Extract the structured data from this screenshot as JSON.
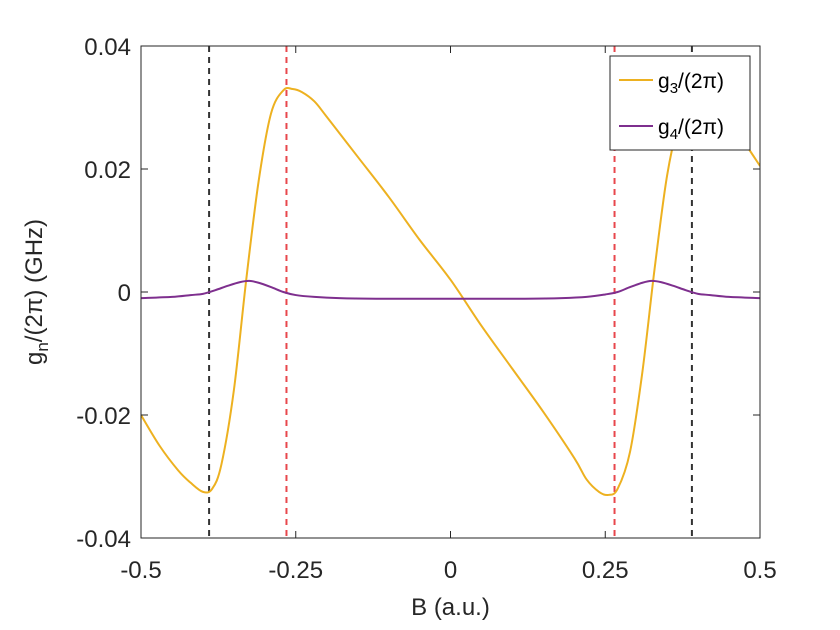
{
  "chart_data": {
    "type": "line",
    "title": "",
    "xlabel": "B (a.u.)",
    "ylabel": {
      "base": "g",
      "sub": "n",
      "rest": "/(2π) (GHz)"
    },
    "xlim": [
      -0.5,
      0.5
    ],
    "ylim": [
      -0.04,
      0.04
    ],
    "xticks": [
      -0.5,
      -0.25,
      0,
      0.25,
      0.5
    ],
    "xtick_labels": [
      "-0.5",
      "-0.25",
      "0",
      "0.25",
      "0.5"
    ],
    "yticks": [
      -0.04,
      -0.02,
      0,
      0.02,
      0.04
    ],
    "ytick_labels": [
      "-0.04",
      "-0.02",
      "0",
      "0.02",
      "0.04"
    ],
    "grid": false,
    "legend_position": "top-right",
    "vlines": [
      {
        "x": -0.39,
        "color": "#333333"
      },
      {
        "x": -0.265,
        "color": "#e8474c"
      },
      {
        "x": 0.265,
        "color": "#e8474c"
      },
      {
        "x": 0.39,
        "color": "#333333"
      }
    ],
    "series": [
      {
        "name": {
          "base": "g",
          "sub": "3",
          "rest": "/(2π)"
        },
        "color": "#EDB120",
        "x": [
          -0.5,
          -0.47,
          -0.44,
          -0.42,
          -0.4,
          -0.385,
          -0.37,
          -0.35,
          -0.33,
          -0.31,
          -0.29,
          -0.27,
          -0.255,
          -0.24,
          -0.22,
          -0.2,
          -0.15,
          -0.1,
          -0.05,
          0.0,
          0.05,
          0.1,
          0.15,
          0.2,
          0.22,
          0.24,
          0.255,
          0.27,
          0.29,
          0.31,
          0.33,
          0.35,
          0.37,
          0.385,
          0.4,
          0.42,
          0.44,
          0.47,
          0.5
        ],
        "y": [
          -0.02,
          -0.025,
          -0.029,
          -0.031,
          -0.0325,
          -0.032,
          -0.028,
          -0.016,
          0.002,
          0.018,
          0.029,
          0.0328,
          0.033,
          0.0325,
          0.031,
          0.0285,
          0.022,
          0.0155,
          0.0085,
          0.002,
          -0.0055,
          -0.0125,
          -0.0195,
          -0.027,
          -0.0305,
          -0.0325,
          -0.033,
          -0.032,
          -0.026,
          -0.013,
          0.004,
          0.019,
          0.028,
          0.031,
          0.0328,
          0.031,
          0.029,
          0.025,
          0.0205
        ]
      },
      {
        "name": {
          "base": "g",
          "sub": "4",
          "rest": "/(2π)"
        },
        "color": "#7E2F8E",
        "x": [
          -0.5,
          -0.45,
          -0.42,
          -0.4,
          -0.38,
          -0.36,
          -0.34,
          -0.325,
          -0.31,
          -0.29,
          -0.27,
          -0.25,
          -0.22,
          -0.18,
          -0.12,
          -0.06,
          0.0,
          0.06,
          0.12,
          0.18,
          0.22,
          0.25,
          0.27,
          0.29,
          0.31,
          0.325,
          0.34,
          0.36,
          0.38,
          0.4,
          0.42,
          0.45,
          0.5
        ],
        "y": [
          -0.001,
          -0.0008,
          -0.0005,
          -0.0003,
          0.0003,
          0.001,
          0.0016,
          0.0018,
          0.0015,
          0.0008,
          0.0,
          -0.0005,
          -0.0008,
          -0.001,
          -0.0011,
          -0.0011,
          -0.0011,
          -0.0011,
          -0.0011,
          -0.001,
          -0.0008,
          -0.0004,
          0.0,
          0.0008,
          0.0015,
          0.0018,
          0.0016,
          0.001,
          0.0003,
          -0.0003,
          -0.0005,
          -0.0008,
          -0.001
        ]
      }
    ]
  }
}
